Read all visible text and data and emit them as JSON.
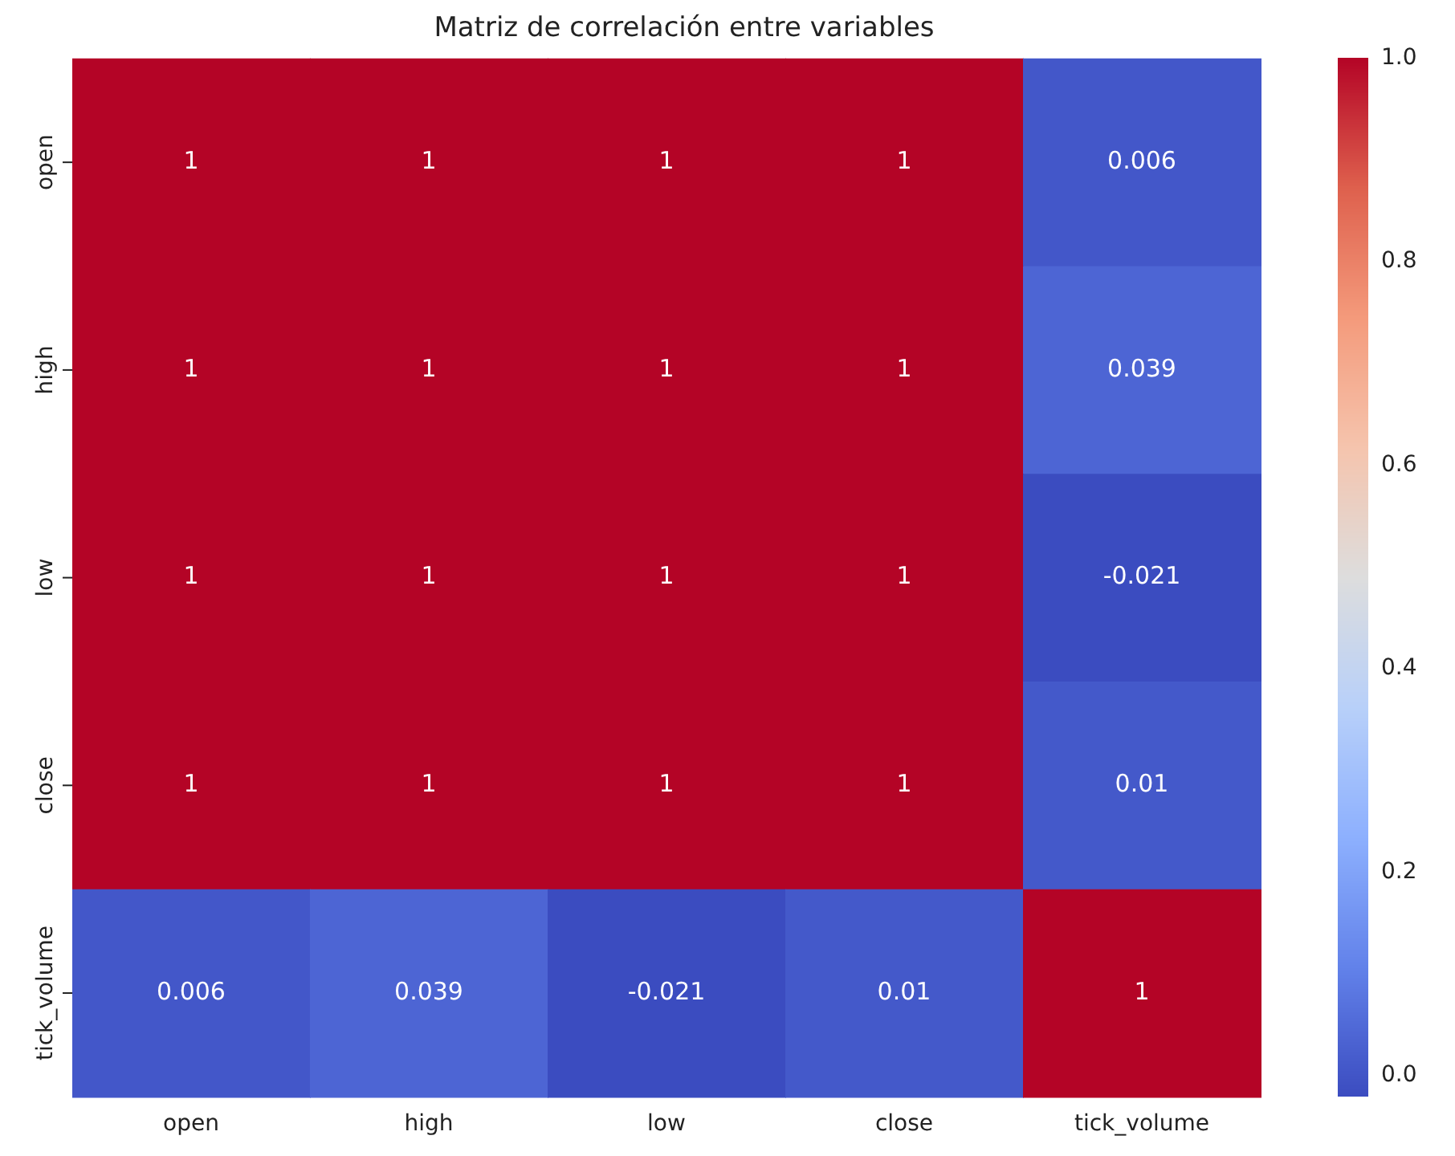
{
  "chart_data": {
    "type": "heatmap",
    "title": "Matriz de correlación entre variables",
    "categories": [
      "open",
      "high",
      "low",
      "close",
      "tick_volume"
    ],
    "y_categories": [
      "open",
      "high",
      "low",
      "close",
      "tick_volume"
    ],
    "cells": [
      [
        1,
        1,
        1,
        1,
        0.006
      ],
      [
        1,
        1,
        1,
        1,
        0.039
      ],
      [
        1,
        1,
        1,
        1,
        -0.021
      ],
      [
        1,
        1,
        1,
        1,
        0.01
      ],
      [
        0.006,
        0.039,
        -0.021,
        0.01,
        1
      ]
    ],
    "clim": [
      -0.021,
      1
    ],
    "cticks": [
      {
        "value": 0,
        "label": "0.0"
      },
      {
        "value": 0.2,
        "label": "0.2"
      },
      {
        "value": 0.4,
        "label": "0.4"
      },
      {
        "value": 0.6,
        "label": "0.6"
      },
      {
        "value": 0.8,
        "label": "0.8"
      },
      {
        "value": 1,
        "label": "1.0"
      }
    ],
    "data_labels": true
  }
}
